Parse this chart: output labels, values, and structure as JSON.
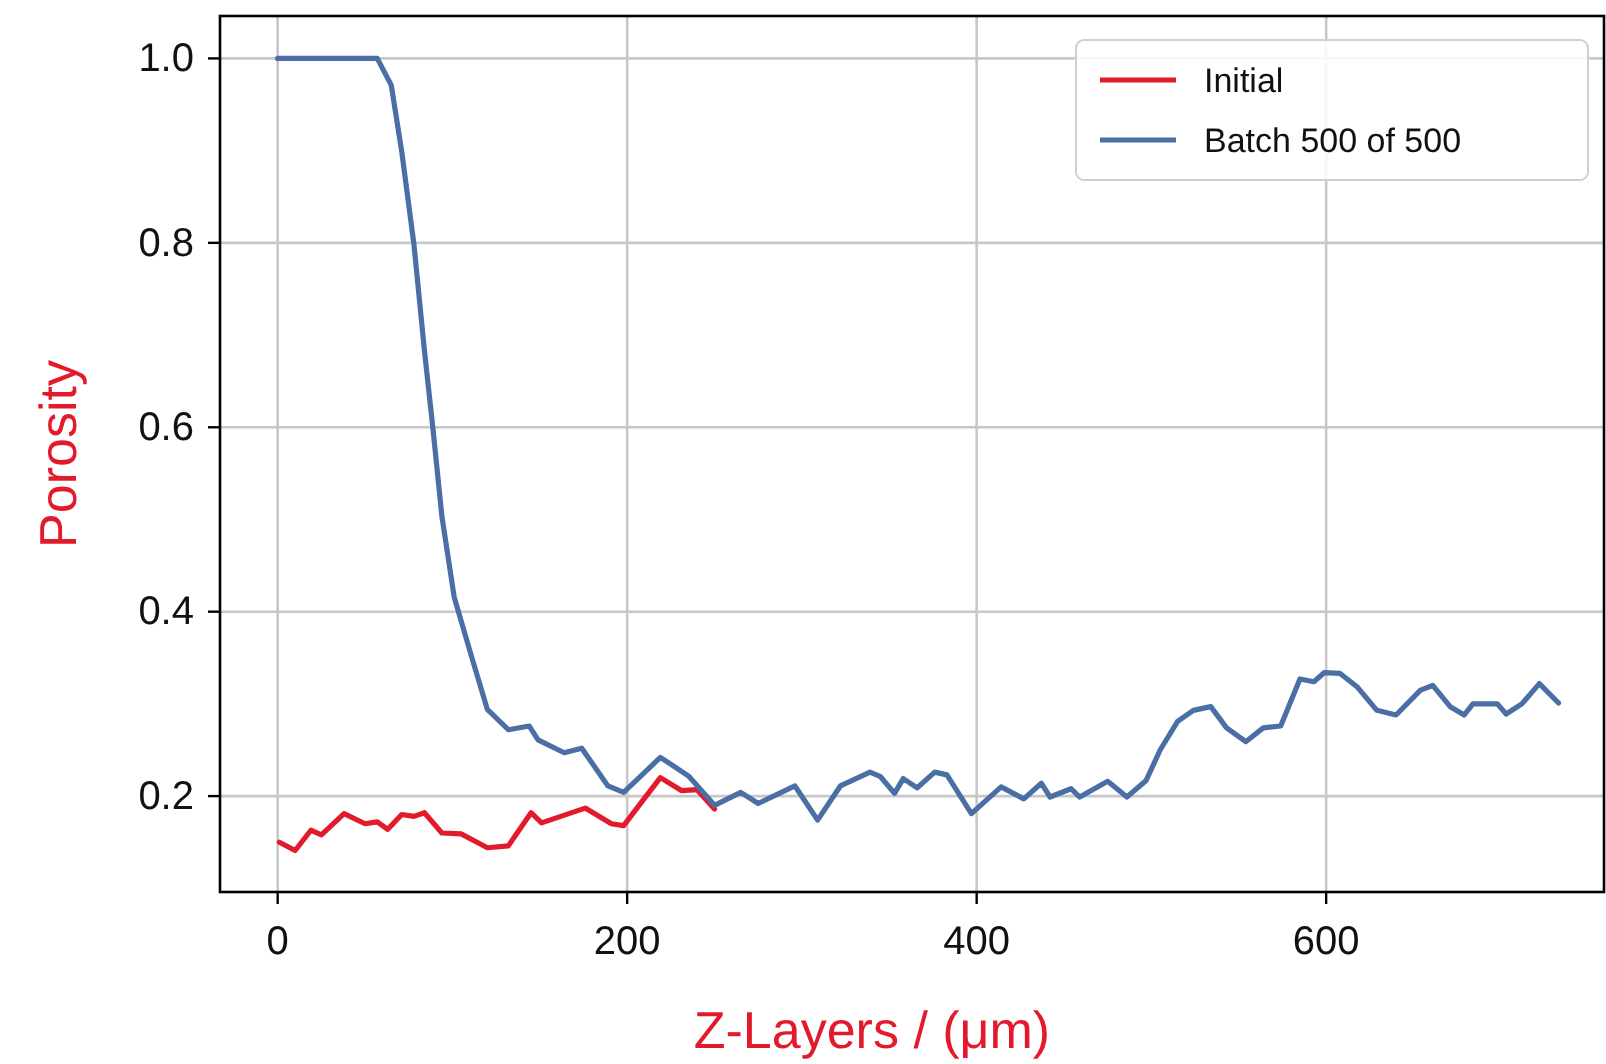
{
  "chart_data": {
    "type": "line",
    "xlabel": "Z-Layers / (μm)",
    "ylabel": "Porosity",
    "xlim": [
      -33,
      759
    ],
    "ylim": [
      0.096,
      1.046
    ],
    "xticks": [
      0,
      200,
      400,
      600
    ],
    "yticks": [
      {
        "value": 0.2,
        "label": "0.2"
      },
      {
        "value": 0.4,
        "label": "0.4"
      },
      {
        "value": 0.6,
        "label": "0.6"
      },
      {
        "value": 0.8,
        "label": "0.8"
      },
      {
        "value": 1.0,
        "label": "1.0"
      }
    ],
    "grid": true,
    "legend": "top right",
    "line_style": "solid",
    "marker": "none",
    "series": [
      {
        "name": "Initial",
        "color": "#e31a2b",
        "x": [
          1,
          10,
          19,
          25,
          38,
          50,
          57,
          63,
          71,
          78,
          84,
          94,
          105,
          113,
          120,
          132,
          145,
          151,
          162,
          176,
          191,
          198,
          208,
          219,
          231,
          240,
          250
        ],
        "values": [
          0.15,
          0.141,
          0.163,
          0.158,
          0.181,
          0.17,
          0.172,
          0.164,
          0.18,
          0.178,
          0.182,
          0.16,
          0.159,
          0.151,
          0.144,
          0.146,
          0.182,
          0.171,
          0.178,
          0.187,
          0.17,
          0.168,
          0.193,
          0.22,
          0.206,
          0.207,
          0.186
        ]
      },
      {
        "name": "Batch 500 of 500",
        "color": "#4a6fa5",
        "x": [
          0,
          57,
          65,
          71,
          78,
          84,
          89,
          94,
          101,
          111,
          120,
          132,
          144,
          149,
          164,
          174,
          189,
          198,
          219,
          235,
          250,
          265,
          275,
          296,
          309,
          322,
          339,
          345,
          353,
          358,
          366,
          376,
          383,
          397,
          414,
          427,
          437,
          442,
          454,
          459,
          475,
          486,
          497,
          505,
          515,
          524,
          534,
          543,
          554,
          564,
          574,
          585,
          593,
          599,
          608,
          618,
          629,
          640,
          654,
          661,
          671,
          679,
          684,
          698,
          703,
          712,
          722,
          733
        ],
        "values": [
          1.0,
          1.0,
          0.971,
          0.899,
          0.798,
          0.683,
          0.596,
          0.503,
          0.416,
          0.351,
          0.294,
          0.272,
          0.276,
          0.261,
          0.247,
          0.252,
          0.211,
          0.204,
          0.242,
          0.222,
          0.19,
          0.204,
          0.192,
          0.211,
          0.174,
          0.211,
          0.226,
          0.221,
          0.203,
          0.219,
          0.209,
          0.226,
          0.223,
          0.181,
          0.21,
          0.197,
          0.214,
          0.199,
          0.208,
          0.199,
          0.216,
          0.199,
          0.217,
          0.25,
          0.281,
          0.293,
          0.297,
          0.274,
          0.259,
          0.274,
          0.276,
          0.327,
          0.324,
          0.334,
          0.333,
          0.318,
          0.293,
          0.288,
          0.315,
          0.32,
          0.297,
          0.288,
          0.3,
          0.3,
          0.289,
          0.3,
          0.322,
          0.301
        ]
      }
    ]
  }
}
